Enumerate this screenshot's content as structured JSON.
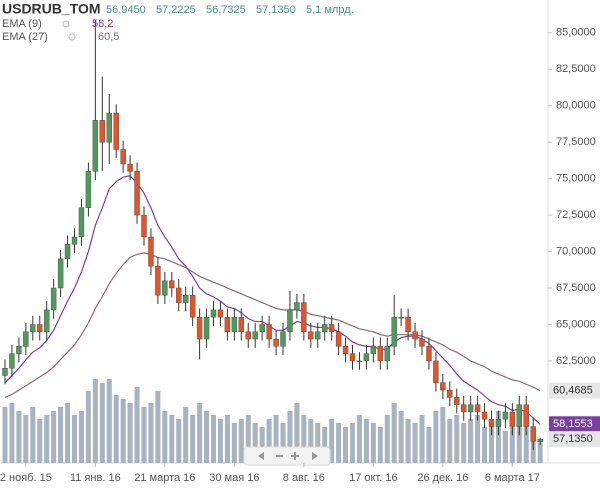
{
  "chart_data": {
    "type": "candlestick",
    "title": "USDRUB_TOM",
    "header": {
      "open": "56,9450",
      "high": "57,2225",
      "low": "56,7325",
      "close": "57,1350",
      "volume": "5,1 млрд."
    },
    "indicators": [
      {
        "name": "EMA (9)",
        "label": "58,2",
        "color": "#7b3fa0"
      },
      {
        "name": "EMA (27)",
        "label": "60,5",
        "color": "#8e6a78"
      }
    ],
    "categories": [
      null,
      null,
      null,
      "2 нояб. 15",
      null,
      null,
      null,
      null,
      null,
      null,
      null,
      null,
      null,
      "11 янв. 16",
      null,
      null,
      null,
      null,
      null,
      null,
      null,
      null,
      null,
      "21 марта 16",
      null,
      null,
      null,
      null,
      null,
      null,
      null,
      null,
      null,
      "30 мая 16",
      null,
      null,
      null,
      null,
      null,
      null,
      null,
      null,
      null,
      "8 авг. 16",
      null,
      null,
      null,
      null,
      null,
      null,
      null,
      null,
      null,
      "17 окт. 16",
      null,
      null,
      null,
      null,
      null,
      null,
      null,
      null,
      null,
      "26 дек. 16",
      null,
      null,
      null,
      null,
      null,
      null,
      null,
      null,
      null,
      "6 марта 17",
      null,
      null,
      null,
      null
    ],
    "open": [
      61.5,
      62.0,
      63.0,
      63.5,
      64.5,
      65.0,
      64.5,
      66.0,
      67.5,
      69.5,
      70.5,
      71.0,
      73.0,
      75.5,
      79.0,
      77.5,
      79.5,
      77.0,
      76.0,
      75.5,
      72.5,
      71.0,
      69.0,
      67.0,
      68.0,
      67.5,
      66.5,
      67.0,
      65.5,
      64.0,
      65.5,
      66.0,
      65.5,
      64.5,
      65.5,
      64.5,
      64.0,
      64.5,
      65.0,
      64.0,
      63.5,
      64.5,
      66.0,
      66.5,
      64.5,
      64.0,
      64.5,
      65.0,
      64.5,
      63.5,
      63.0,
      62.5,
      62.5,
      63.0,
      63.5,
      62.5,
      63.5,
      65.5,
      65.5,
      64.5,
      64.0,
      63.5,
      62.5,
      61.0,
      60.5,
      60.0,
      59.5,
      59.0,
      59.5,
      59.0,
      58.5,
      58.0,
      58.5,
      59.0,
      58.0,
      59.5,
      58.0,
      56.945
    ],
    "high": [
      62.6,
      63.6,
      64.1,
      65.1,
      65.6,
      65.6,
      66.6,
      68.1,
      70.1,
      71.1,
      71.6,
      73.6,
      76.1,
      85.9,
      82.0,
      80.8,
      80.1,
      77.6,
      76.6,
      76.1,
      73.1,
      71.6,
      69.6,
      68.6,
      68.6,
      68.1,
      67.6,
      67.6,
      66.1,
      66.1,
      66.6,
      66.6,
      66.1,
      66.1,
      66.1,
      65.1,
      65.1,
      65.6,
      65.6,
      64.6,
      65.1,
      67.3,
      67.1,
      67.1,
      65.1,
      65.1,
      65.6,
      65.6,
      65.1,
      64.1,
      63.6,
      63.1,
      63.6,
      64.1,
      64.1,
      64.1,
      67.0,
      66.1,
      66.1,
      65.1,
      64.6,
      64.1,
      63.1,
      61.6,
      61.1,
      60.6,
      60.1,
      60.1,
      60.1,
      59.6,
      59.1,
      59.1,
      59.6,
      59.6,
      60.1,
      60.1,
      58.6,
      57.2225
    ],
    "low": [
      60.9,
      61.4,
      62.4,
      62.9,
      63.9,
      63.9,
      63.9,
      65.4,
      66.9,
      68.9,
      69.9,
      70.4,
      72.4,
      74.9,
      75.5,
      76.0,
      76.4,
      75.4,
      74.9,
      71.9,
      70.4,
      68.4,
      66.4,
      66.4,
      66.9,
      65.9,
      65.9,
      64.9,
      62.6,
      63.4,
      64.9,
      64.9,
      63.9,
      63.9,
      63.9,
      63.4,
      63.4,
      63.9,
      63.4,
      62.9,
      62.9,
      63.9,
      65.4,
      63.9,
      63.4,
      63.4,
      63.9,
      63.9,
      62.9,
      62.4,
      61.9,
      61.9,
      61.9,
      62.4,
      61.9,
      61.9,
      62.9,
      64.9,
      63.9,
      63.4,
      62.9,
      61.9,
      60.4,
      59.9,
      59.4,
      58.9,
      58.4,
      58.4,
      58.4,
      57.9,
      57.4,
      57.4,
      57.9,
      57.4,
      57.4,
      57.4,
      56.4,
      56.7325
    ],
    "close": [
      62.0,
      63.0,
      63.5,
      64.5,
      65.0,
      64.5,
      66.0,
      67.5,
      69.5,
      70.5,
      71.0,
      73.0,
      75.5,
      79.0,
      77.5,
      79.5,
      77.0,
      76.0,
      75.5,
      72.5,
      71.0,
      69.0,
      67.0,
      68.0,
      67.5,
      66.5,
      67.0,
      65.5,
      64.0,
      65.5,
      66.0,
      65.5,
      64.5,
      65.5,
      64.5,
      64.0,
      64.5,
      65.0,
      64.0,
      63.5,
      64.5,
      66.0,
      66.5,
      64.5,
      64.0,
      64.5,
      65.0,
      64.5,
      63.5,
      63.0,
      62.5,
      62.5,
      63.0,
      63.5,
      62.5,
      63.5,
      65.5,
      65.5,
      64.5,
      64.0,
      63.5,
      62.5,
      61.0,
      60.5,
      60.0,
      59.5,
      59.0,
      59.5,
      59.0,
      58.5,
      58.0,
      58.5,
      59.0,
      58.0,
      59.5,
      58.0,
      57.0,
      57.135
    ],
    "ema9": [
      61.0,
      61.5,
      62.0,
      62.6,
      63.1,
      63.4,
      63.9,
      64.6,
      65.6,
      66.6,
      67.5,
      68.6,
      70.0,
      71.8,
      73.0,
      74.3,
      74.8,
      75.1,
      75.2,
      74.7,
      74.0,
      73.0,
      71.8,
      71.0,
      70.3,
      69.5,
      69.0,
      68.3,
      67.5,
      67.1,
      66.9,
      66.6,
      66.2,
      66.1,
      65.8,
      65.4,
      65.2,
      65.2,
      64.9,
      64.6,
      64.6,
      64.9,
      65.2,
      65.1,
      64.9,
      64.8,
      64.8,
      64.7,
      64.5,
      64.2,
      63.8,
      63.6,
      63.5,
      63.5,
      63.3,
      63.3,
      63.8,
      64.1,
      64.2,
      64.2,
      64.0,
      63.7,
      63.2,
      62.7,
      62.2,
      61.6,
      61.1,
      60.8,
      60.5,
      60.1,
      59.7,
      59.5,
      59.4,
      59.1,
      59.2,
      59.0,
      58.6,
      58.1553
    ],
    "ema27": [
      60.0,
      60.2,
      60.5,
      60.8,
      61.1,
      61.4,
      61.7,
      62.1,
      62.6,
      63.1,
      63.6,
      64.3,
      65.1,
      66.1,
      66.9,
      67.8,
      68.5,
      69.1,
      69.6,
      69.8,
      69.9,
      69.8,
      69.6,
      69.5,
      69.3,
      69.1,
      68.9,
      68.6,
      68.3,
      68.1,
      67.9,
      67.7,
      67.5,
      67.3,
      67.1,
      66.9,
      66.7,
      66.5,
      66.3,
      66.1,
      66.0,
      66.0,
      66.0,
      65.9,
      65.7,
      65.6,
      65.5,
      65.4,
      65.3,
      65.1,
      64.9,
      64.7,
      64.6,
      64.5,
      64.3,
      64.2,
      64.3,
      64.3,
      64.3,
      64.3,
      64.2,
      64.0,
      63.8,
      63.6,
      63.3,
      63.1,
      62.8,
      62.5,
      62.3,
      62.1,
      61.8,
      61.6,
      61.4,
      61.2,
      61.1,
      60.9,
      60.7,
      60.4685
    ],
    "volume": [
      14,
      15,
      13,
      12,
      14,
      11,
      12,
      13,
      14,
      15,
      12,
      13,
      18,
      21,
      20,
      21,
      17,
      16,
      15,
      19,
      14,
      15,
      18,
      13,
      12,
      11,
      14,
      12,
      15,
      13,
      12,
      11,
      12,
      10,
      11,
      12,
      10,
      9,
      11,
      12,
      10,
      13,
      15,
      12,
      11,
      10,
      9,
      11,
      10,
      9,
      10,
      12,
      11,
      10,
      9,
      12,
      15,
      13,
      11,
      10,
      12,
      9,
      13,
      14,
      11,
      12,
      10,
      11,
      12,
      9,
      10,
      13,
      8,
      9,
      12,
      10,
      7,
      5.1
    ],
    "volume_lim": [
      0,
      22
    ],
    "last_labels": {
      "ema27": "60,4685",
      "ema9": "58,1553",
      "close": "57,1350"
    },
    "colors": {
      "up": "#4f9a5c",
      "down": "#e0562a",
      "volume": "#a7b3bf"
    },
    "ylim": [
      55.5,
      87.25
    ],
    "yticks": [
      {
        "value": 62.5,
        "label": "62,5000"
      },
      {
        "value": 65,
        "label": "65,0000"
      },
      {
        "value": 67.5,
        "label": "67,5000"
      },
      {
        "value": 70,
        "label": "70,0000"
      },
      {
        "value": 72.5,
        "label": "72,5000"
      },
      {
        "value": 75,
        "label": "75,0000"
      },
      {
        "value": 77.5,
        "label": "77,5000"
      },
      {
        "value": 80,
        "label": "80,0000"
      },
      {
        "value": 82.5,
        "label": "82,5000"
      },
      {
        "value": 85,
        "label": "85,0000"
      }
    ],
    "grid": false
  }
}
